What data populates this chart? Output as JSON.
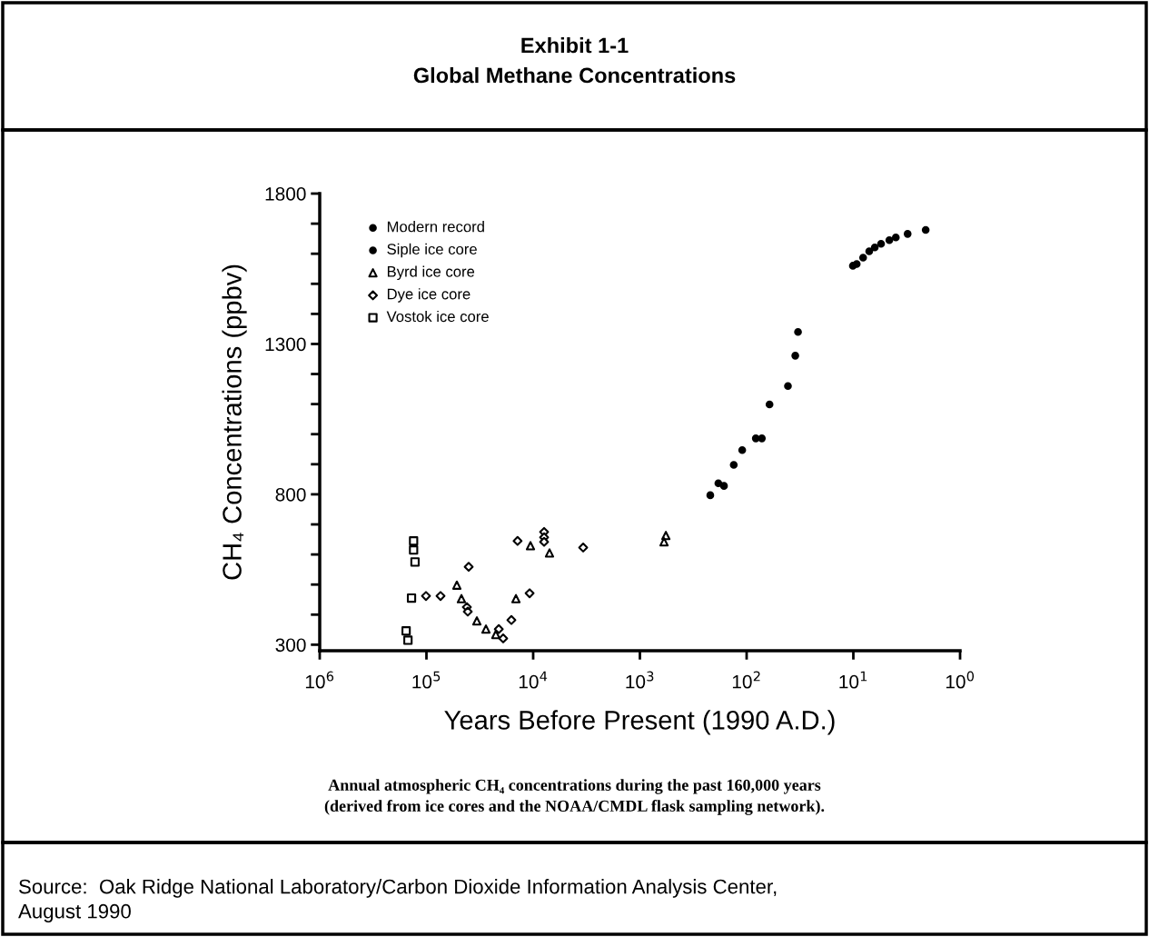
{
  "chart_data": {
    "type": "scatter",
    "title": "Exhibit 1-1",
    "subtitle": "Global Methane Concentrations",
    "xlabel": "Years Before Present (1990 A.D.)",
    "ylabel": "CH₄ Concentrations (ppbv)",
    "log": "x",
    "xlim": [
      1000000,
      1
    ],
    "ylim": [
      280,
      1800
    ],
    "xticks": [
      {
        "value": 1000000,
        "label": "10$^{6}$"
      },
      {
        "value": 100000,
        "label": "10$^{5}$"
      },
      {
        "value": 10000,
        "label": "10$^{4}$"
      },
      {
        "value": 1000,
        "label": "10$^{3}$"
      },
      {
        "value": 100,
        "label": "10$^{2}$"
      },
      {
        "value": 10,
        "label": "10$^{1}$"
      },
      {
        "value": 1,
        "label": "10$^{0}$"
      }
    ],
    "yticks": [
      300,
      {
        "value": 400,
        "label": null
      },
      {
        "value": 500,
        "label": null
      },
      {
        "value": 600,
        "label": null
      },
      {
        "value": 700,
        "label": null
      },
      800,
      {
        "value": 900,
        "label": null
      },
      {
        "value": 1000,
        "label": null
      },
      {
        "value": 1100,
        "label": null
      },
      {
        "value": 1200,
        "label": null
      },
      1300,
      {
        "value": 1400,
        "label": null
      },
      {
        "value": 1500,
        "label": null
      },
      {
        "value": 1600,
        "label": null
      },
      {
        "value": 1700,
        "label": null
      },
      1800
    ],
    "grid": false,
    "legend": "top left",
    "series": [
      {
        "name": "Modern record",
        "color": "#000000",
        "marker": "circle",
        "x": [
          10.1,
          9.3,
          8.1,
          7.1,
          6.3,
          5.5,
          4.6,
          4.0,
          3.1,
          2.1
        ],
        "values": [
          1560,
          1566,
          1587,
          1608,
          1621,
          1633,
          1645,
          1654,
          1666,
          1679
        ]
      },
      {
        "name": "Siple ice core",
        "color": "#000000",
        "marker": "circle",
        "x": [
          219,
          184,
          163,
          132,
          110,
          82,
          72,
          61,
          41,
          35,
          33
        ],
        "values": [
          797,
          837,
          828,
          898,
          947,
          986,
          986,
          1099,
          1160,
          1261,
          1340
        ]
      },
      {
        "name": "Byrd ice core",
        "color": "#000000",
        "marker": "triangle",
        "x": [
          51900,
          47000,
          33700,
          27700,
          22400,
          14500,
          10600,
          7030,
          571,
          594
        ],
        "values": [
          498,
          453,
          379,
          352,
          334,
          453,
          629,
          605,
          663,
          642
        ]
      },
      {
        "name": "Dye ice core",
        "color": "#000000",
        "marker": "diamond",
        "x": [
          101000,
          73800,
          40200,
          41800,
          41000,
          21000,
          19100,
          16000,
          14000,
          10800,
          7900,
          7900,
          7900,
          3400
        ],
        "values": [
          462,
          462,
          559,
          425,
          410,
          352,
          321,
          382,
          645,
          471,
          675,
          657,
          642,
          623
        ]
      },
      {
        "name": "Vostok ice core",
        "color": "#000000",
        "marker": "square",
        "x": [
          155000,
          149000,
          138000,
          132000,
          132000,
          128000
        ],
        "values": [
          346,
          315,
          455,
          645,
          615,
          575
        ]
      }
    ],
    "annotations": [
      "Annual atmospheric CH₄ concentrations during the past 160,000 years\n(derived from ice cores and the NOAA/CMDL flask sampling network).",
      "Source:  Oak Ridge National Laboratory/Carbon Dioxide Information Analysis Center,\nAugust 1990"
    ]
  }
}
